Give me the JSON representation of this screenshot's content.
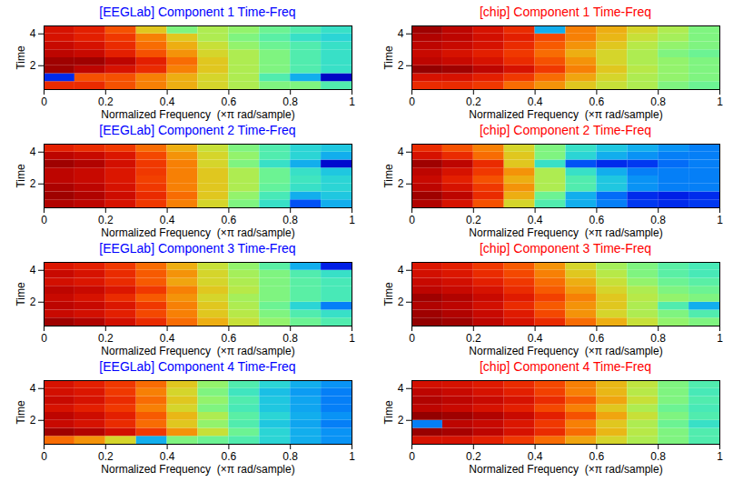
{
  "chart_data": [
    {
      "type": "heatmap",
      "title": "[EEGLab] Component 1 Time-Freq",
      "color": "#0000ff",
      "x_label": "Normalized Frequency  (×π rad/sample)",
      "y_label": "Time",
      "xlim": [
        0,
        1
      ],
      "ylim": [
        0.5,
        4.5
      ],
      "xticks": [
        0,
        0.2,
        0.4,
        0.6,
        0.8,
        1
      ],
      "yticks": [
        2,
        4
      ],
      "zlim": [
        0,
        1
      ],
      "x_bins": [
        0,
        0.1,
        0.2,
        0.3,
        0.4,
        0.5,
        0.6,
        0.7,
        0.8,
        0.9,
        1
      ],
      "y_bins": [
        0.5,
        1,
        1.5,
        2,
        2.5,
        3,
        3.5,
        4,
        4.5
      ],
      "cells": [
        [
          0.8,
          0.8,
          0.75,
          0.7,
          0.65,
          0.6,
          0.55,
          0.5,
          0.5,
          0.45
        ],
        [
          0.2,
          0.75,
          0.75,
          0.7,
          0.65,
          0.6,
          0.55,
          0.45,
          0.35,
          0.1
        ],
        [
          0.95,
          0.9,
          0.85,
          0.8,
          0.7,
          0.62,
          0.55,
          0.5,
          0.45,
          0.42
        ],
        [
          0.95,
          0.95,
          0.9,
          0.82,
          0.72,
          0.62,
          0.55,
          0.5,
          0.45,
          0.42
        ],
        [
          0.9,
          0.88,
          0.82,
          0.75,
          0.68,
          0.6,
          0.55,
          0.5,
          0.45,
          0.42
        ],
        [
          0.88,
          0.85,
          0.8,
          0.72,
          0.65,
          0.58,
          0.52,
          0.48,
          0.45,
          0.42
        ],
        [
          0.85,
          0.82,
          0.78,
          0.7,
          0.62,
          0.55,
          0.5,
          0.46,
          0.42,
          0.4
        ],
        [
          0.85,
          0.82,
          0.75,
          0.62,
          0.5,
          0.55,
          0.52,
          0.48,
          0.45,
          0.42
        ]
      ]
    },
    {
      "type": "heatmap",
      "title": "[chip] Component 1 Time-Freq",
      "color": "#ff0000",
      "x_label": "Normalized Frequency  (×π rad/sample)",
      "y_label": "Time",
      "xlim": [
        0,
        1
      ],
      "ylim": [
        0.5,
        4.5
      ],
      "xticks": [
        0,
        0.2,
        0.4,
        0.6,
        0.8,
        1
      ],
      "yticks": [
        2,
        4
      ],
      "zlim": [
        0,
        1
      ],
      "x_bins": [
        0,
        0.1,
        0.2,
        0.3,
        0.4,
        0.5,
        0.6,
        0.7,
        0.8,
        0.9,
        1
      ],
      "y_bins": [
        0.5,
        1,
        1.5,
        2,
        2.5,
        3,
        3.5,
        4,
        4.5
      ],
      "cells": [
        [
          0.8,
          0.8,
          0.78,
          0.72,
          0.68,
          0.62,
          0.58,
          0.55,
          0.5,
          0.48
        ],
        [
          0.85,
          0.85,
          0.82,
          0.78,
          0.72,
          0.66,
          0.6,
          0.55,
          0.52,
          0.5
        ],
        [
          0.97,
          0.95,
          0.9,
          0.85,
          0.78,
          0.7,
          0.62,
          0.56,
          0.52,
          0.5
        ],
        [
          0.9,
          0.88,
          0.85,
          0.8,
          0.75,
          0.68,
          0.6,
          0.55,
          0.52,
          0.5
        ],
        [
          0.88,
          0.85,
          0.82,
          0.78,
          0.72,
          0.65,
          0.6,
          0.55,
          0.5,
          0.48
        ],
        [
          0.9,
          0.88,
          0.85,
          0.8,
          0.74,
          0.68,
          0.62,
          0.56,
          0.52,
          0.5
        ],
        [
          0.92,
          0.9,
          0.86,
          0.82,
          0.76,
          0.7,
          0.64,
          0.58,
          0.54,
          0.5
        ],
        [
          0.95,
          0.9,
          0.85,
          0.8,
          0.35,
          0.7,
          0.65,
          0.6,
          0.55,
          0.5
        ]
      ]
    },
    {
      "type": "heatmap",
      "title": "[EEGLab] Component 2 Time-Freq",
      "color": "#0000ff",
      "x_label": "Normalized Frequency  (×π rad/sample)",
      "y_label": "Time",
      "xlim": [
        0,
        1
      ],
      "ylim": [
        0.5,
        4.5
      ],
      "xticks": [
        0,
        0.2,
        0.4,
        0.6,
        0.8,
        1
      ],
      "yticks": [
        2,
        4
      ],
      "zlim": [
        0,
        1
      ],
      "x_bins": [
        0,
        0.1,
        0.2,
        0.3,
        0.4,
        0.5,
        0.6,
        0.7,
        0.8,
        0.9,
        1
      ],
      "y_bins": [
        0.5,
        1,
        1.5,
        2,
        2.5,
        3,
        3.5,
        4,
        4.5
      ],
      "cells": [
        [
          0.92,
          0.9,
          0.85,
          0.78,
          0.7,
          0.6,
          0.5,
          0.42,
          0.25,
          0.35
        ],
        [
          0.95,
          0.92,
          0.87,
          0.8,
          0.72,
          0.62,
          0.52,
          0.44,
          0.35,
          0.38
        ],
        [
          0.93,
          0.9,
          0.85,
          0.78,
          0.7,
          0.62,
          0.55,
          0.47,
          0.42,
          0.4
        ],
        [
          0.9,
          0.88,
          0.84,
          0.77,
          0.7,
          0.62,
          0.55,
          0.48,
          0.43,
          0.4
        ],
        [
          0.9,
          0.88,
          0.84,
          0.78,
          0.7,
          0.62,
          0.55,
          0.48,
          0.42,
          0.38
        ],
        [
          0.95,
          0.92,
          0.86,
          0.78,
          0.7,
          0.6,
          0.5,
          0.42,
          0.35,
          0.12
        ],
        [
          0.9,
          0.88,
          0.84,
          0.76,
          0.68,
          0.6,
          0.52,
          0.45,
          0.4,
          0.35
        ],
        [
          0.82,
          0.8,
          0.78,
          0.72,
          0.65,
          0.58,
          0.5,
          0.45,
          0.4,
          0.38
        ]
      ]
    },
    {
      "type": "heatmap",
      "title": "[chip] Component 2 Time-Freq",
      "color": "#ff0000",
      "x_label": "Normalized Frequency  (×π rad/sample)",
      "y_label": "Time",
      "xlim": [
        0,
        1
      ],
      "ylim": [
        0.5,
        4.5
      ],
      "xticks": [
        0,
        0.2,
        0.4,
        0.6,
        0.8,
        1
      ],
      "yticks": [
        2,
        4
      ],
      "zlim": [
        0,
        1
      ],
      "x_bins": [
        0,
        0.1,
        0.2,
        0.3,
        0.4,
        0.5,
        0.6,
        0.7,
        0.8,
        0.9,
        1
      ],
      "y_bins": [
        0.5,
        1,
        1.5,
        2,
        2.5,
        3,
        3.5,
        4,
        4.5
      ],
      "cells": [
        [
          0.92,
          0.85,
          0.75,
          0.6,
          0.45,
          0.35,
          0.3,
          0.22,
          0.2,
          0.22
        ],
        [
          0.95,
          0.9,
          0.8,
          0.65,
          0.48,
          0.35,
          0.28,
          0.2,
          0.18,
          0.2
        ],
        [
          0.9,
          0.85,
          0.78,
          0.68,
          0.55,
          0.45,
          0.38,
          0.32,
          0.3,
          0.3
        ],
        [
          0.88,
          0.82,
          0.75,
          0.65,
          0.55,
          0.45,
          0.38,
          0.32,
          0.3,
          0.3
        ],
        [
          0.9,
          0.85,
          0.78,
          0.68,
          0.55,
          0.42,
          0.35,
          0.3,
          0.3,
          0.3
        ],
        [
          0.95,
          0.9,
          0.8,
          0.62,
          0.42,
          0.25,
          0.2,
          0.22,
          0.28,
          0.3
        ],
        [
          0.85,
          0.8,
          0.72,
          0.62,
          0.5,
          0.4,
          0.35,
          0.32,
          0.3,
          0.3
        ],
        [
          0.8,
          0.75,
          0.7,
          0.6,
          0.5,
          0.42,
          0.38,
          0.35,
          0.32,
          0.3
        ]
      ]
    },
    {
      "type": "heatmap",
      "title": "[EEGLab] Component 3 Time-Freq",
      "color": "#0000ff",
      "x_label": "Normalized Frequency  (×π rad/sample)",
      "y_label": "Time",
      "xlim": [
        0,
        1
      ],
      "ylim": [
        0.5,
        4.5
      ],
      "xticks": [
        0,
        0.2,
        0.4,
        0.6,
        0.8,
        1
      ],
      "yticks": [
        2,
        4
      ],
      "zlim": [
        0,
        1
      ],
      "x_bins": [
        0,
        0.1,
        0.2,
        0.3,
        0.4,
        0.5,
        0.6,
        0.7,
        0.8,
        0.9,
        1
      ],
      "y_bins": [
        0.5,
        1,
        1.5,
        2,
        2.5,
        3,
        3.5,
        4,
        4.5
      ],
      "cells": [
        [
          0.95,
          0.92,
          0.86,
          0.8,
          0.72,
          0.65,
          0.58,
          0.52,
          0.48,
          0.45
        ],
        [
          0.88,
          0.86,
          0.82,
          0.76,
          0.7,
          0.62,
          0.56,
          0.5,
          0.45,
          0.42
        ],
        [
          0.9,
          0.88,
          0.84,
          0.78,
          0.7,
          0.62,
          0.55,
          0.48,
          0.4,
          0.3
        ],
        [
          0.88,
          0.85,
          0.8,
          0.74,
          0.68,
          0.6,
          0.54,
          0.5,
          0.46,
          0.44
        ],
        [
          0.9,
          0.88,
          0.84,
          0.78,
          0.7,
          0.62,
          0.56,
          0.5,
          0.46,
          0.44
        ],
        [
          0.86,
          0.84,
          0.8,
          0.74,
          0.66,
          0.6,
          0.55,
          0.5,
          0.46,
          0.44
        ],
        [
          0.88,
          0.85,
          0.8,
          0.74,
          0.68,
          0.6,
          0.54,
          0.5,
          0.45,
          0.42
        ],
        [
          0.84,
          0.82,
          0.78,
          0.72,
          0.65,
          0.58,
          0.52,
          0.46,
          0.35,
          0.18
        ]
      ]
    },
    {
      "type": "heatmap",
      "title": "[chip] Component 3 Time-Freq",
      "color": "#ff0000",
      "x_label": "Normalized Frequency  (×π rad/sample)",
      "y_label": "Time",
      "xlim": [
        0,
        1
      ],
      "ylim": [
        0.5,
        4.5
      ],
      "xticks": [
        0,
        0.2,
        0.4,
        0.6,
        0.8,
        1
      ],
      "yticks": [
        2,
        4
      ],
      "zlim": [
        0,
        1
      ],
      "x_bins": [
        0,
        0.1,
        0.2,
        0.3,
        0.4,
        0.5,
        0.6,
        0.7,
        0.8,
        0.9,
        1
      ],
      "y_bins": [
        0.5,
        1,
        1.5,
        2,
        2.5,
        3,
        3.5,
        4,
        4.5
      ],
      "cells": [
        [
          0.97,
          0.95,
          0.9,
          0.85,
          0.8,
          0.72,
          0.65,
          0.58,
          0.52,
          0.5
        ],
        [
          0.95,
          0.92,
          0.88,
          0.83,
          0.76,
          0.68,
          0.6,
          0.55,
          0.5,
          0.45
        ],
        [
          0.92,
          0.9,
          0.86,
          0.8,
          0.74,
          0.68,
          0.62,
          0.55,
          0.45,
          0.35
        ],
        [
          0.95,
          0.92,
          0.88,
          0.83,
          0.77,
          0.7,
          0.62,
          0.56,
          0.52,
          0.5
        ],
        [
          0.9,
          0.88,
          0.85,
          0.8,
          0.74,
          0.67,
          0.6,
          0.55,
          0.5,
          0.48
        ],
        [
          0.88,
          0.86,
          0.82,
          0.78,
          0.72,
          0.65,
          0.58,
          0.52,
          0.48,
          0.46
        ],
        [
          0.86,
          0.84,
          0.8,
          0.76,
          0.7,
          0.62,
          0.56,
          0.5,
          0.46,
          0.44
        ],
        [
          0.84,
          0.82,
          0.78,
          0.74,
          0.68,
          0.6,
          0.54,
          0.5,
          0.46,
          0.44
        ]
      ]
    },
    {
      "type": "heatmap",
      "title": "[EEGLab] Component 4 Time-Freq",
      "color": "#0000ff",
      "x_label": "Normalized Frequency  (×π rad/sample)",
      "y_label": "Time",
      "xlim": [
        0,
        1
      ],
      "ylim": [
        0.5,
        4.5
      ],
      "xticks": [
        0,
        0.2,
        0.4,
        0.6,
        0.8,
        1
      ],
      "yticks": [
        2,
        4
      ],
      "zlim": [
        0,
        1
      ],
      "x_bins": [
        0,
        0.1,
        0.2,
        0.3,
        0.4,
        0.5,
        0.6,
        0.7,
        0.8,
        0.9,
        1
      ],
      "y_bins": [
        0.5,
        1,
        1.5,
        2,
        2.5,
        3,
        3.5,
        4,
        4.5
      ],
      "cells": [
        [
          0.72,
          0.68,
          0.6,
          0.35,
          0.5,
          0.48,
          0.45,
          0.4,
          0.35,
          0.32
        ],
        [
          0.95,
          0.92,
          0.86,
          0.78,
          0.68,
          0.58,
          0.48,
          0.4,
          0.35,
          0.32
        ],
        [
          0.88,
          0.85,
          0.8,
          0.72,
          0.62,
          0.52,
          0.45,
          0.38,
          0.34,
          0.3
        ],
        [
          0.9,
          0.87,
          0.82,
          0.74,
          0.64,
          0.55,
          0.46,
          0.4,
          0.35,
          0.32
        ],
        [
          0.85,
          0.82,
          0.78,
          0.7,
          0.6,
          0.5,
          0.44,
          0.38,
          0.34,
          0.3
        ],
        [
          0.88,
          0.85,
          0.8,
          0.72,
          0.62,
          0.52,
          0.45,
          0.38,
          0.34,
          0.3
        ],
        [
          0.86,
          0.84,
          0.78,
          0.7,
          0.6,
          0.5,
          0.43,
          0.37,
          0.33,
          0.3
        ],
        [
          0.85,
          0.82,
          0.78,
          0.72,
          0.62,
          0.52,
          0.45,
          0.4,
          0.35,
          0.32
        ]
      ]
    },
    {
      "type": "heatmap",
      "title": "[chip] Component 4 Time-Freq",
      "color": "#ff0000",
      "x_label": "Normalized Frequency  (×π rad/sample)",
      "y_label": "Time",
      "xlim": [
        0,
        1
      ],
      "ylim": [
        0.5,
        4.5
      ],
      "xticks": [
        0,
        0.2,
        0.4,
        0.6,
        0.8,
        1
      ],
      "yticks": [
        2,
        4
      ],
      "zlim": [
        0,
        1
      ],
      "x_bins": [
        0,
        0.1,
        0.2,
        0.3,
        0.4,
        0.5,
        0.6,
        0.7,
        0.8,
        0.9,
        1
      ],
      "y_bins": [
        0.5,
        1,
        1.5,
        2,
        2.5,
        3,
        3.5,
        4,
        4.5
      ],
      "cells": [
        [
          0.85,
          0.85,
          0.82,
          0.78,
          0.72,
          0.66,
          0.6,
          0.55,
          0.5,
          0.45
        ],
        [
          0.96,
          0.94,
          0.9,
          0.85,
          0.8,
          0.72,
          0.64,
          0.56,
          0.5,
          0.45
        ],
        [
          0.3,
          0.9,
          0.88,
          0.84,
          0.78,
          0.7,
          0.62,
          0.55,
          0.48,
          0.42
        ],
        [
          0.97,
          0.95,
          0.92,
          0.88,
          0.82,
          0.75,
          0.66,
          0.58,
          0.5,
          0.45
        ],
        [
          0.9,
          0.88,
          0.85,
          0.82,
          0.76,
          0.7,
          0.62,
          0.55,
          0.48,
          0.44
        ],
        [
          0.92,
          0.9,
          0.88,
          0.85,
          0.8,
          0.74,
          0.66,
          0.58,
          0.5,
          0.45
        ],
        [
          0.9,
          0.88,
          0.85,
          0.82,
          0.77,
          0.7,
          0.64,
          0.56,
          0.5,
          0.44
        ],
        [
          0.86,
          0.85,
          0.83,
          0.8,
          0.76,
          0.7,
          0.64,
          0.57,
          0.5,
          0.45
        ]
      ]
    }
  ]
}
